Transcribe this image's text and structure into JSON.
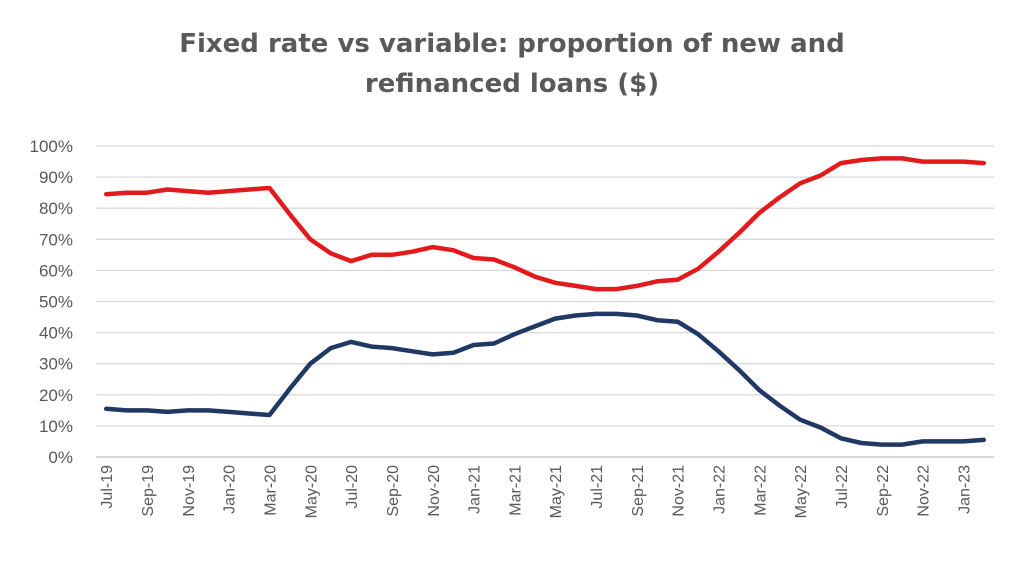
{
  "chart_data": {
    "type": "line",
    "title": "Fixed rate vs variable: proportion of new and refinanced loans ($)",
    "title_lines": [
      "Fixed rate vs variable: proportion of new and",
      "refinanced loans ($)"
    ],
    "xlabel": "",
    "ylabel": "",
    "ylim": [
      0,
      100
    ],
    "grid": true,
    "y_ticks": [
      "0%",
      "10%",
      "20%",
      "30%",
      "40%",
      "50%",
      "60%",
      "70%",
      "80%",
      "90%",
      "100%"
    ],
    "x": [
      "Jul-19",
      "Aug-19",
      "Sep-19",
      "Oct-19",
      "Nov-19",
      "Dec-19",
      "Jan-20",
      "Feb-20",
      "Mar-20",
      "Apr-20",
      "May-20",
      "Jun-20",
      "Jul-20",
      "Aug-20",
      "Sep-20",
      "Oct-20",
      "Nov-20",
      "Dec-20",
      "Jan-21",
      "Feb-21",
      "Mar-21",
      "Apr-21",
      "May-21",
      "Jun-21",
      "Jul-21",
      "Aug-21",
      "Sep-21",
      "Oct-21",
      "Nov-21",
      "Dec-21",
      "Jan-22",
      "Feb-22",
      "Mar-22",
      "Apr-22",
      "May-22",
      "Jun-22",
      "Jul-22",
      "Aug-22",
      "Sep-22",
      "Oct-22",
      "Nov-22",
      "Dec-22",
      "Jan-23",
      "Feb-23"
    ],
    "x_tick_labels": [
      "Jul-19",
      "Sep-19",
      "Nov-19",
      "Jan-20",
      "Mar-20",
      "May-20",
      "Jul-20",
      "Sep-20",
      "Nov-20",
      "Jan-21",
      "Mar-21",
      "May-21",
      "Jul-21",
      "Sep-21",
      "Nov-21",
      "Jan-22",
      "Mar-22",
      "May-22",
      "Jul-22",
      "Sep-22",
      "Nov-22",
      "Jan-23"
    ],
    "series": [
      {
        "color": "#e31a1c",
        "values": [
          84.5,
          85,
          85,
          86,
          85.5,
          85,
          85.5,
          86,
          86.5,
          78,
          70,
          65.5,
          63,
          65,
          65,
          66,
          67.5,
          66.5,
          64,
          63.5,
          61,
          58,
          56,
          55,
          54,
          54,
          55,
          56.5,
          57,
          60.5,
          66,
          72,
          78.5,
          83.5,
          88,
          90.5,
          94.5,
          95.5,
          96,
          96,
          95,
          95,
          95,
          94.5
        ]
      },
      {
        "color": "#1f3864",
        "values": [
          15.5,
          15,
          15,
          14.5,
          15,
          15,
          14.5,
          14,
          13.5,
          22,
          30,
          35,
          37,
          35.5,
          35,
          34,
          33,
          33.5,
          36,
          36.5,
          39.5,
          42,
          44.5,
          45.5,
          46,
          46,
          45.5,
          44,
          43.5,
          39.5,
          34,
          28,
          21.5,
          16.5,
          12,
          9.5,
          6,
          4.5,
          4,
          4,
          5,
          5,
          5,
          5.5
        ]
      }
    ]
  }
}
